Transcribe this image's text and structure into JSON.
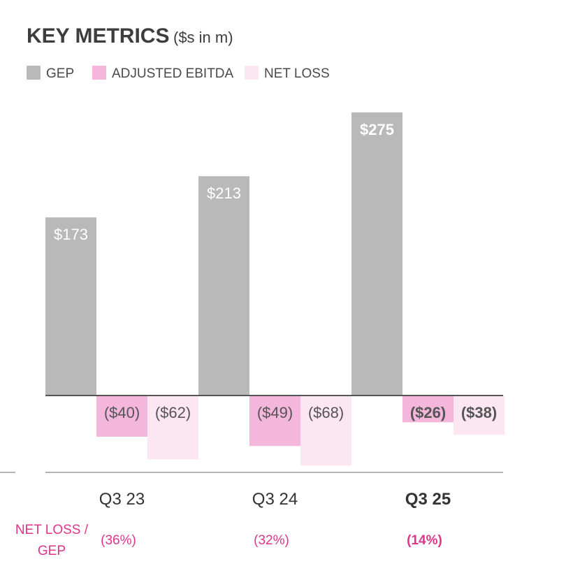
{
  "chart_data": {
    "type": "bar",
    "title": "KEY METRICS",
    "subtitle": "($s in m)",
    "categories": [
      "Q3 23",
      "Q3 24",
      "Q3 25"
    ],
    "highlight_category_index": 2,
    "series": [
      {
        "name": "GEP",
        "color": "#b9b9b9",
        "values": [
          173,
          213,
          275
        ],
        "labels": [
          "$173",
          "$213",
          "$275"
        ]
      },
      {
        "name": "ADJUSTED EBITDA",
        "color": "#f4b6da",
        "values": [
          -40,
          -49,
          -26
        ],
        "labels": [
          "($40)",
          "($49)",
          "($26)"
        ]
      },
      {
        "name": "NET LOSS",
        "color": "#fbe6f1",
        "values": [
          -62,
          -68,
          -38
        ],
        "labels": [
          "($62)",
          "($68)",
          "($38)"
        ]
      }
    ],
    "ratio_row": {
      "title_lines": [
        "NET LOSS /",
        "GEP"
      ],
      "values": [
        -36,
        -32,
        -14
      ],
      "labels": [
        "(36%)",
        "(32%)",
        "(14%)"
      ]
    },
    "legend_position": "top-left"
  }
}
